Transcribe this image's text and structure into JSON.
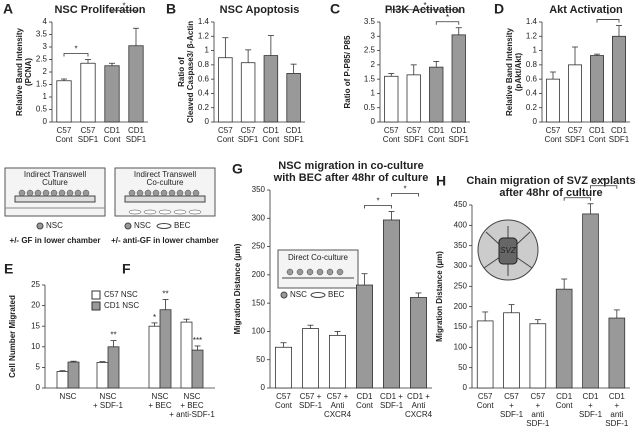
{
  "chart_data": [
    {
      "type": "bar",
      "panels": [
        "A"
      ],
      "title": "NSC Proliferation",
      "ylabel": [
        "Relative Band Intensity",
        "(PCNA)"
      ],
      "categories": [
        [
          "C57",
          "Cont"
        ],
        [
          "C57",
          "SDF1"
        ],
        [
          "CD1",
          "Cont"
        ],
        [
          "CD1",
          "SDF1"
        ]
      ],
      "values": [
        1.65,
        2.35,
        2.25,
        3.05
      ],
      "errors": [
        0.07,
        0.15,
        0.1,
        0.7
      ],
      "colors": [
        "#ffffff",
        "#ffffff",
        "#999999",
        "#999999"
      ],
      "ylim": [
        0,
        4
      ],
      "yticks": [
        0,
        0.5,
        1,
        1.5,
        2,
        2.5,
        3,
        3.5,
        4
      ],
      "significance": [
        {
          "label": "*",
          "pair": [
            0,
            1
          ]
        },
        {
          "label": "*",
          "pair": [
            2,
            3
          ]
        }
      ]
    },
    {
      "type": "bar",
      "panels": [
        "B"
      ],
      "title": "NSC Apoptosis",
      "ylabel": [
        "Ratio of",
        "Cleaved Caspase3/ β-Actin"
      ],
      "categories": [
        [
          "C57",
          "Cont"
        ],
        [
          "C57",
          "SDF1"
        ],
        [
          "CD1",
          "Cont"
        ],
        [
          "CD1",
          "SDF1"
        ]
      ],
      "values": [
        0.9,
        0.83,
        0.93,
        0.68
      ],
      "errors": [
        0.28,
        0.18,
        0.28,
        0.13
      ],
      "colors": [
        "#ffffff",
        "#ffffff",
        "#999999",
        "#999999"
      ],
      "ylim": [
        0,
        1.4
      ],
      "yticks": [
        0,
        0.2,
        0.4,
        0.6,
        0.8,
        1,
        1.2,
        1.4
      ],
      "significance": []
    },
    {
      "type": "bar",
      "panels": [
        "C"
      ],
      "title": "PI3K Activation",
      "ylabel": [
        "Ratio of P-P85/ P85"
      ],
      "categories": [
        [
          "C57",
          "Cont"
        ],
        [
          "C57",
          "SDF1"
        ],
        [
          "CD1",
          "Cont"
        ],
        [
          "CD1",
          "SDF1"
        ]
      ],
      "values": [
        1.6,
        1.65,
        1.92,
        3.05
      ],
      "errors": [
        0.1,
        0.35,
        0.2,
        0.25
      ],
      "colors": [
        "#ffffff",
        "#ffffff",
        "#999999",
        "#999999"
      ],
      "ylim": [
        0,
        3.5
      ],
      "yticks": [
        0,
        0.5,
        1,
        1.5,
        2,
        2.5,
        3,
        3.5
      ],
      "significance": [
        {
          "label": "*",
          "pair": [
            2,
            3
          ]
        },
        {
          "label": "*",
          "pair": [
            0,
            3
          ]
        }
      ]
    },
    {
      "type": "bar",
      "panels": [
        "D"
      ],
      "title": "Akt Activation",
      "ylabel": [
        "Relative Band Intensity",
        "(pAkt/Akt)"
      ],
      "categories": [
        [
          "C57",
          "Cont"
        ],
        [
          "C57",
          "SDF1"
        ],
        [
          "CD1",
          "Cont"
        ],
        [
          "CD1",
          "SDF1"
        ]
      ],
      "values": [
        0.6,
        0.8,
        0.93,
        1.2
      ],
      "errors": [
        0.1,
        0.25,
        0.02,
        0.15
      ],
      "colors": [
        "#ffffff",
        "#ffffff",
        "#999999",
        "#999999"
      ],
      "ylim": [
        0,
        1.4
      ],
      "yticks": [
        0,
        0.2,
        0.4,
        0.6,
        0.8,
        1,
        1.2,
        1.4
      ],
      "significance": [
        {
          "label": "*",
          "pair": [
            2,
            3
          ]
        }
      ]
    },
    {
      "type": "grouped_bar",
      "panels": [
        "E",
        "F"
      ],
      "ylabel": [
        "Cell Number Migrated"
      ],
      "categories": [
        [
          "NSC"
        ],
        [
          "NSC",
          "+ SDF-1"
        ],
        [
          "NSC",
          "+ BEC"
        ],
        [
          "NSC",
          "+ BEC",
          "+ anti-SDF-1"
        ]
      ],
      "series": [
        {
          "name": "C57 NSC",
          "color": "#ffffff",
          "values": [
            4,
            6.2,
            15,
            16
          ],
          "errors": [
            0.2,
            0.2,
            0.8,
            0.7
          ],
          "stars": [
            null,
            null,
            "*",
            null
          ]
        },
        {
          "name": "CD1 NSC",
          "color": "#999999",
          "values": [
            6.3,
            10,
            19,
            9.2
          ],
          "errors": [
            0.2,
            1.5,
            2.5,
            1
          ],
          "stars": [
            null,
            "**",
            "**",
            "***"
          ]
        }
      ],
      "ylim": [
        0,
        25
      ],
      "yticks": [
        0,
        5,
        10,
        15,
        20,
        25
      ]
    },
    {
      "type": "bar",
      "panels": [
        "G"
      ],
      "title": [
        "NSC migration in co-culture",
        "with BEC after 48hr of culture"
      ],
      "ylabel": [
        "Migration Distance (µm)"
      ],
      "categories": [
        [
          "C57",
          "Cont"
        ],
        [
          "C57 +",
          "SDF-1"
        ],
        [
          "C57 +",
          "Anti",
          "CXCR4"
        ],
        [
          "CD1",
          "Cont"
        ],
        [
          "CD1 +",
          "SDF-1"
        ],
        [
          "CD1 +",
          "Anti",
          "CXCR4"
        ]
      ],
      "values": [
        72,
        105,
        93,
        182,
        297,
        160
      ],
      "errors": [
        8,
        6,
        7,
        20,
        15,
        8
      ],
      "colors": [
        "#ffffff",
        "#ffffff",
        "#ffffff",
        "#999999",
        "#999999",
        "#999999"
      ],
      "ylim": [
        0,
        350
      ],
      "yticks": [
        0,
        50,
        100,
        150,
        200,
        250,
        300,
        350
      ],
      "significance": [
        {
          "label": "*",
          "pair": [
            3,
            4
          ]
        },
        {
          "label": "*",
          "pair": [
            4,
            5
          ]
        }
      ]
    },
    {
      "type": "bar",
      "panels": [
        "H"
      ],
      "title": [
        "Chain migration of SVZ explants",
        "after 48hr of culture"
      ],
      "ylabel": [
        "Migration Distance (µm)"
      ],
      "categories": [
        [
          "C57",
          "Cont"
        ],
        [
          "C57",
          "+",
          "SDF-1"
        ],
        [
          "C57",
          "+",
          "anti",
          "SDF-1"
        ],
        [
          "CD1",
          "Cont"
        ],
        [
          "CD1",
          "+",
          "SDF-1"
        ],
        [
          "CD1",
          "+",
          "anti",
          "SDF-1"
        ]
      ],
      "values": [
        165,
        185,
        158,
        243,
        428,
        172
      ],
      "errors": [
        22,
        20,
        10,
        25,
        25,
        20
      ],
      "colors": [
        "#ffffff",
        "#ffffff",
        "#ffffff",
        "#999999",
        "#999999",
        "#999999"
      ],
      "ylim": [
        0,
        450
      ],
      "yticks": [
        0,
        50,
        100,
        150,
        200,
        250,
        300,
        350,
        400,
        450
      ],
      "significance": [
        {
          "label": "*",
          "pair": [
            3,
            4
          ]
        },
        {
          "label": "*",
          "pair": [
            4,
            5
          ]
        }
      ]
    }
  ],
  "schematics": {
    "transwell_culture": {
      "title": [
        "Indirect Transwell",
        "Culture"
      ],
      "legend": [
        "NSC"
      ],
      "caption": "+/- GF in lower chamber"
    },
    "transwell_coculture": {
      "title": [
        "Indirect Transwell",
        "Co-culture"
      ],
      "legend": [
        "NSC",
        "BEC"
      ],
      "caption": "+/- anti-GF in lower chamber"
    },
    "direct_coculture": {
      "title": "Direct Co-culture",
      "legend": [
        "NSC",
        "BEC"
      ]
    },
    "explant": {
      "label": "SVZ"
    }
  }
}
